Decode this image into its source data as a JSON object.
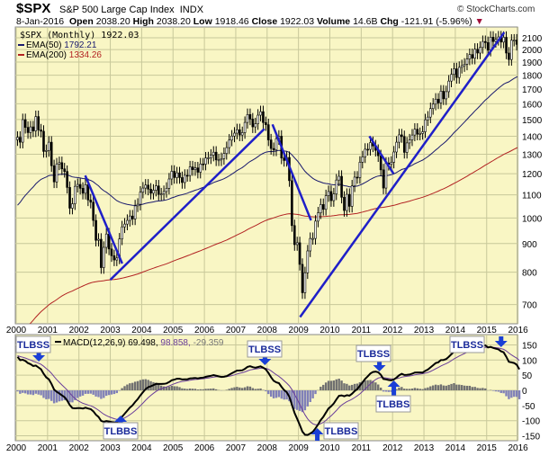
{
  "header": {
    "symbol": "$SPX",
    "name": "S&P 500 Large Cap Index",
    "exchange": "INDX",
    "credit": "© StockCharts.com",
    "date": "8-Jan-2016",
    "open_label": "Open",
    "open": "2038.20",
    "high_label": "High",
    "high": "2038.20",
    "low_label": "Low",
    "low": "1918.46",
    "close_label": "Close",
    "close": "1922.03",
    "volume_label": "Volume",
    "volume": "14.6B",
    "chg_label": "Chg",
    "chg": "-121.91 (-5.96%)"
  },
  "chart_data": [
    {
      "type": "candlestick",
      "title": "$SPX (Monthly) 1922.03",
      "scale": "log",
      "ylim": [
        660,
        2200
      ],
      "yticks": [
        700,
        800,
        900,
        1000,
        1100,
        1200,
        1300,
        1400,
        1500,
        1600,
        1700,
        1800,
        1900,
        2000,
        2100
      ],
      "xticks": [
        "2000",
        "2001",
        "2002",
        "2003",
        "2004",
        "2005",
        "2006",
        "2007",
        "2008",
        "2009",
        "2010",
        "2011",
        "2012",
        "2013",
        "2014",
        "2015",
        "2016"
      ],
      "grid": true,
      "start": "2000-01",
      "monthly_close": [
        1394,
        1366,
        1499,
        1452,
        1421,
        1455,
        1431,
        1518,
        1437,
        1429,
        1315,
        1320,
        1366,
        1240,
        1160,
        1249,
        1256,
        1224,
        1211,
        1134,
        1041,
        1060,
        1139,
        1148,
        1130,
        1107,
        1147,
        1077,
        1067,
        990,
        912,
        916,
        815,
        886,
        936,
        880,
        856,
        841,
        848,
        917,
        964,
        975,
        990,
        1008,
        996,
        1051,
        1058,
        1112,
        1131,
        1145,
        1126,
        1107,
        1121,
        1141,
        1102,
        1104,
        1115,
        1130,
        1174,
        1212,
        1181,
        1204,
        1181,
        1157,
        1192,
        1191,
        1234,
        1220,
        1229,
        1207,
        1249,
        1248,
        1280,
        1281,
        1295,
        1311,
        1270,
        1270,
        1277,
        1304,
        1336,
        1378,
        1401,
        1418,
        1438,
        1407,
        1421,
        1482,
        1531,
        1503,
        1455,
        1474,
        1527,
        1549,
        1481,
        1468,
        1379,
        1331,
        1323,
        1386,
        1400,
        1280,
        1267,
        1283,
        1166,
        969,
        896,
        903,
        826,
        735,
        798,
        873,
        919,
        919,
        987,
        1021,
        1057,
        1036,
        1096,
        1115,
        1074,
        1104,
        1169,
        1187,
        1089,
        1031,
        1102,
        1049,
        1141,
        1183,
        1181,
        1258,
        1286,
        1327,
        1326,
        1364,
        1345,
        1321,
        1292,
        1219,
        1131,
        1253,
        1247,
        1258,
        1312,
        1366,
        1408,
        1398,
        1310,
        1362,
        1379,
        1407,
        1441,
        1412,
        1416,
        1426,
        1498,
        1515,
        1569,
        1598,
        1631,
        1606,
        1686,
        1633,
        1682,
        1757,
        1806,
        1848,
        1783,
        1859,
        1872,
        1884,
        1924,
        1960,
        1931,
        2003,
        1972,
        2018,
        2068,
        2059,
        1995,
        2105,
        2068,
        2086,
        2107,
        2063,
        2104,
        1972,
        1920,
        2079,
        2080,
        2044,
        1922
      ],
      "overlays": [
        {
          "name": "EMA(50)",
          "value": "1792.21",
          "color": "#1a1a6e"
        },
        {
          "name": "EMA(200)",
          "value": "1334.26",
          "color": "#b22222"
        }
      ],
      "trendlines": [
        {
          "from": [
            2002.2,
            1191
          ],
          "to": [
            2003.38,
            829
          ]
        },
        {
          "from": [
            2003.0,
            775
          ],
          "to": [
            2007.91,
            1443
          ]
        },
        {
          "from": [
            2008.17,
            1470
          ],
          "to": [
            2009.4,
            990
          ]
        },
        {
          "from": [
            2009.05,
            665
          ],
          "to": [
            2015.56,
            2147
          ]
        },
        {
          "from": [
            2011.26,
            1400
          ],
          "to": [
            2012.03,
            1200
          ]
        }
      ],
      "trendline_color": "#1f1fc8"
    },
    {
      "type": "line+histogram",
      "title": "MACD(12,26,9)",
      "macd": "69.498",
      "signal": "98.858",
      "histogram": "-29.359",
      "ylim": [
        -165,
        165
      ],
      "yticks": [
        -150,
        -100,
        -50,
        0,
        50,
        100,
        150
      ],
      "xticks": [
        "2000",
        "2001",
        "2002",
        "2003",
        "2004",
        "2005",
        "2006",
        "2007",
        "2008",
        "2009",
        "2010",
        "2011",
        "2012",
        "2013",
        "2014",
        "2015",
        "2016"
      ],
      "colors": {
        "macd": "#000000",
        "signal": "#6a3d9a",
        "hist_pos": "#707070",
        "hist_neg": "#8080b8"
      },
      "annotations": [
        {
          "text": "TLBSS",
          "date": 2000.72,
          "dir": "down"
        },
        {
          "text": "TLBBS",
          "date": 2003.33,
          "dir": "up"
        },
        {
          "text": "TLBSS",
          "date": 2007.93,
          "dir": "down"
        },
        {
          "text": "TLBBS",
          "date": 2009.6,
          "dir": "up"
        },
        {
          "text": "TLBSS",
          "date": 2011.58,
          "dir": "down"
        },
        {
          "text": "TLBBS",
          "date": 2012.04,
          "dir": "up"
        },
        {
          "text": "TLBSS",
          "date": 2015.46,
          "dir": "down"
        }
      ]
    }
  ]
}
